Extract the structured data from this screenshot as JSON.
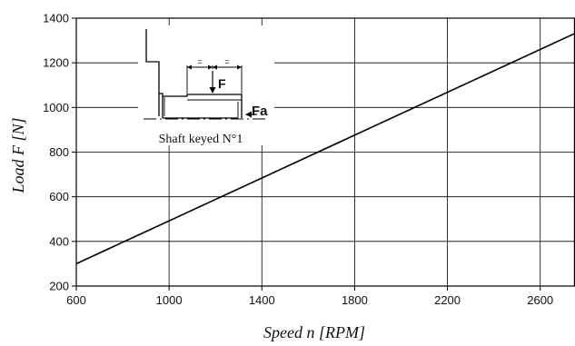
{
  "chart_data": {
    "type": "line",
    "xlabel": "Speed n [RPM]",
    "ylabel": "Load F [N]",
    "xlim": [
      600,
      2750
    ],
    "ylim": [
      200,
      1400
    ],
    "x_ticks": [
      600,
      1000,
      1400,
      1800,
      2200,
      2600
    ],
    "y_ticks": [
      200,
      400,
      600,
      800,
      1000,
      1200,
      1400
    ],
    "grid": true,
    "series": [
      {
        "x": [
          600,
          2750
        ],
        "y": [
          300,
          1332
        ]
      }
    ],
    "inset": {
      "caption": "Shaft keyed N°1",
      "force_label": "F",
      "axial_force_label": "Fa",
      "equal_marks": [
        "=",
        "="
      ]
    }
  }
}
